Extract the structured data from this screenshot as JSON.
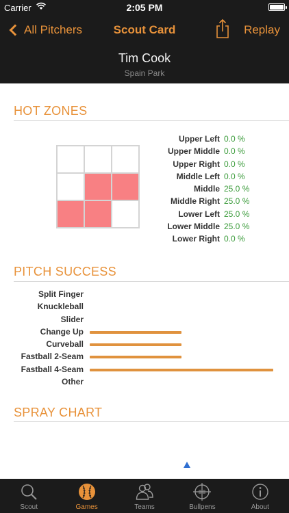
{
  "status": {
    "carrier": "Carrier",
    "time": "2:05 PM"
  },
  "nav": {
    "back_label": "All Pitchers",
    "title": "Scout Card",
    "replay_label": "Replay"
  },
  "player": {
    "name": "Tim Cook",
    "school": "Spain Park"
  },
  "hot_zones": {
    "title": "HOT ZONES",
    "grid": [
      0,
      0,
      0,
      0,
      1,
      1,
      1,
      1,
      0
    ],
    "hot_color": "#f88083",
    "zones": [
      {
        "label": "Upper Left",
        "value": "0.0 %"
      },
      {
        "label": "Upper Middle",
        "value": "0.0 %"
      },
      {
        "label": "Upper Right",
        "value": "0.0 %"
      },
      {
        "label": "Middle Left",
        "value": "0.0 %"
      },
      {
        "label": "Middle",
        "value": "25.0 %"
      },
      {
        "label": "Middle Right",
        "value": "25.0 %"
      },
      {
        "label": "Lower Left",
        "value": "25.0 %"
      },
      {
        "label": "Lower Middle",
        "value": "25.0 %"
      },
      {
        "label": "Lower Right",
        "value": "0.0 %"
      }
    ]
  },
  "pitch_success": {
    "title": "PITCH SUCCESS",
    "bar_color": "#e0923e",
    "max_fraction": 1.0,
    "pitches": [
      {
        "label": "Split Finger",
        "fraction": 0
      },
      {
        "label": "Knuckleball",
        "fraction": 0
      },
      {
        "label": "Slider",
        "fraction": 0
      },
      {
        "label": "Change Up",
        "fraction": 0.5
      },
      {
        "label": "Curveball",
        "fraction": 0.5
      },
      {
        "label": "Fastball 2-Seam",
        "fraction": 0.5
      },
      {
        "label": "Fastball 4-Seam",
        "fraction": 1.0
      },
      {
        "label": "Other",
        "fraction": 0
      }
    ]
  },
  "spray_chart": {
    "title": "SPRAY CHART",
    "marker_color": "#2f6fd1"
  },
  "tabs": {
    "active": "games",
    "items": [
      {
        "id": "scout",
        "label": "Scout",
        "icon": "magnifier-icon"
      },
      {
        "id": "games",
        "label": "Games",
        "icon": "baseball-icon"
      },
      {
        "id": "teams",
        "label": "Teams",
        "icon": "people-icon"
      },
      {
        "id": "bullpens",
        "label": "Bullpens",
        "icon": "crosshair-icon"
      },
      {
        "id": "about",
        "label": "About",
        "icon": "info-icon"
      }
    ]
  },
  "colors": {
    "accent": "#e8923a",
    "bar_background": "#1b1b1b",
    "percent_green": "#3a9b3a"
  }
}
